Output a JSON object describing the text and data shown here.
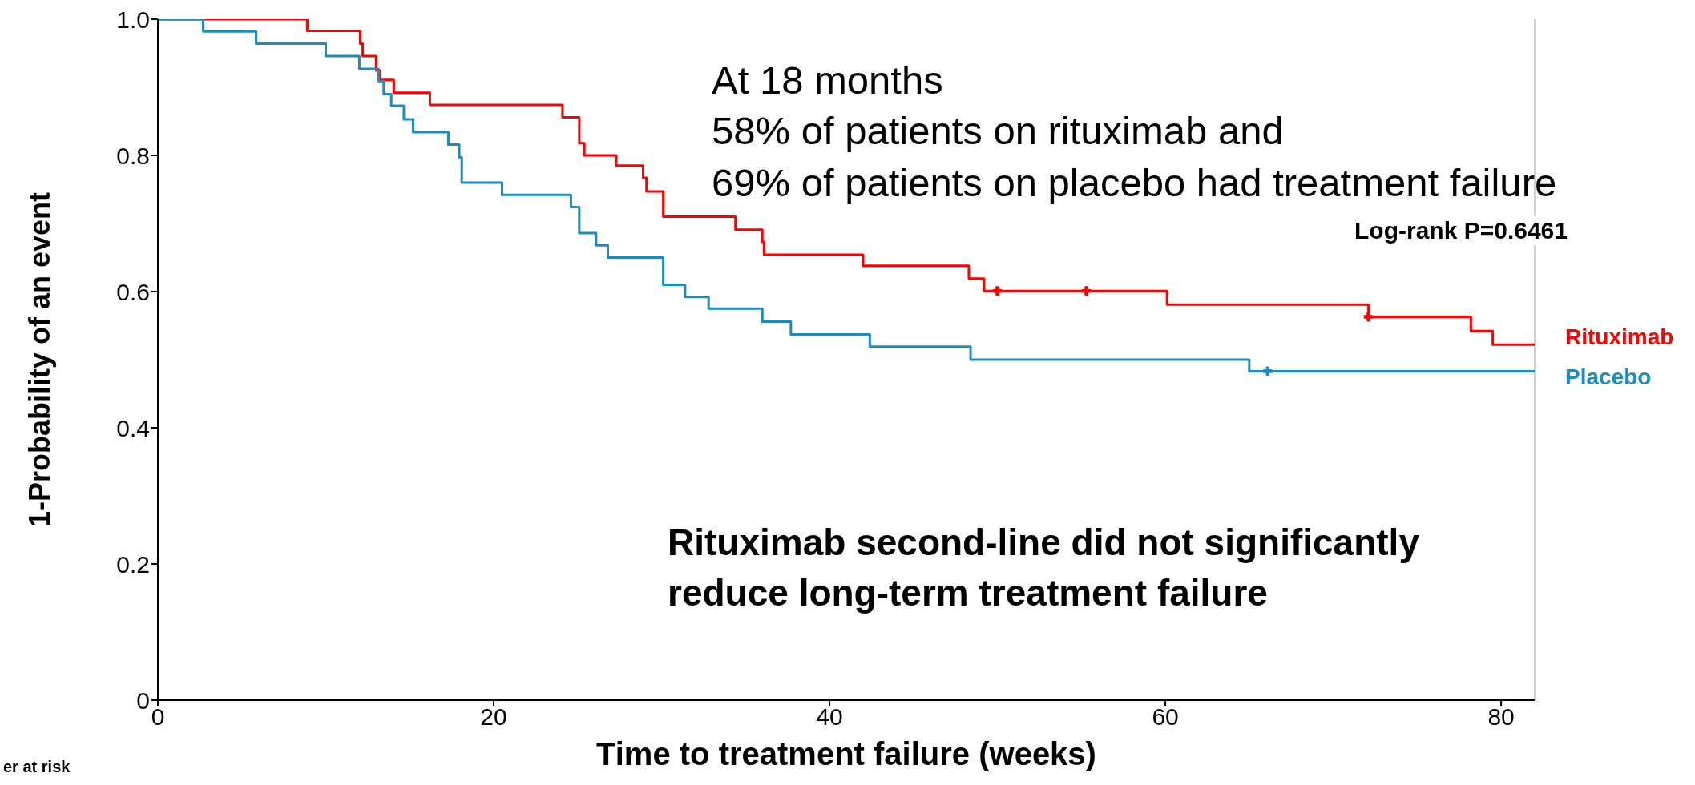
{
  "chart_data": {
    "type": "step",
    "xlabel": "Time to treatment failure (weeks)",
    "ylabel": "1-Probability of an event",
    "xlim": [
      0,
      82
    ],
    "xticks": [
      0,
      20,
      40,
      60,
      80
    ],
    "ylim": [
      0,
      1
    ],
    "yticks": [
      0,
      0.2,
      0.4,
      0.6,
      0.8,
      {
        "value": 1,
        "label": "1.0"
      }
    ],
    "legend": "right",
    "series": [
      {
        "name": "Rituximab",
        "color": "#ff0000",
        "x": [
          0,
          8.9,
          12.05,
          12.2,
          13.0,
          13.2,
          14.05,
          16.2,
          24.1,
          25.1,
          25.4,
          27.3,
          28.9,
          29.1,
          30.1,
          34.4,
          36.0,
          36.1,
          42.0,
          48.3,
          49.2,
          60.1,
          72.1,
          78.2,
          79.5,
          82
        ],
        "values": [
          1.0,
          0.983,
          0.964,
          0.946,
          0.925,
          0.911,
          0.892,
          0.874,
          0.856,
          0.818,
          0.8,
          0.785,
          0.767,
          0.747,
          0.71,
          0.691,
          0.673,
          0.654,
          0.638,
          0.619,
          0.601,
          0.581,
          0.563,
          0.542,
          0.522,
          0.522
        ]
      },
      {
        "name": "Placebo",
        "color": "#1a8cbf",
        "x": [
          0,
          2.7,
          5.85,
          10.0,
          12.0,
          13.15,
          13.45,
          13.9,
          14.65,
          15.2,
          17.3,
          17.95,
          18.1,
          20.5,
          24.6,
          25.1,
          26.1,
          26.8,
          30.1,
          31.4,
          32.8,
          36.0,
          37.7,
          42.4,
          48.4,
          65.0,
          82
        ],
        "values": [
          1.0,
          0.982,
          0.964,
          0.946,
          0.927,
          0.909,
          0.89,
          0.873,
          0.853,
          0.834,
          0.816,
          0.797,
          0.76,
          0.742,
          0.724,
          0.686,
          0.668,
          0.65,
          0.61,
          0.592,
          0.575,
          0.556,
          0.537,
          0.519,
          0.5,
          0.483,
          0.483
        ]
      },
      {
        "type": "scatter",
        "marker": "cross",
        "color": "#ff0000",
        "x": [
          50.0,
          55.3,
          72.1
        ],
        "values": [
          0.601,
          0.601,
          0.563
        ]
      },
      {
        "type": "scatter",
        "marker": "cross",
        "color": "#1a8cbf",
        "x": [
          66.1
        ],
        "values": [
          0.483
        ]
      }
    ],
    "ref_lines": [
      {
        "axis": "x",
        "value": 82,
        "color": "#c0c0c0"
      }
    ],
    "annotations": [
      "At 18 months",
      "58% of patients on rituximab and",
      "69% of patients on placebo had treatment failure",
      "Log-rank P=0.6461",
      "Rituximab second-line did not significantly reduce long-term treatment failure",
      "er at risk"
    ]
  }
}
